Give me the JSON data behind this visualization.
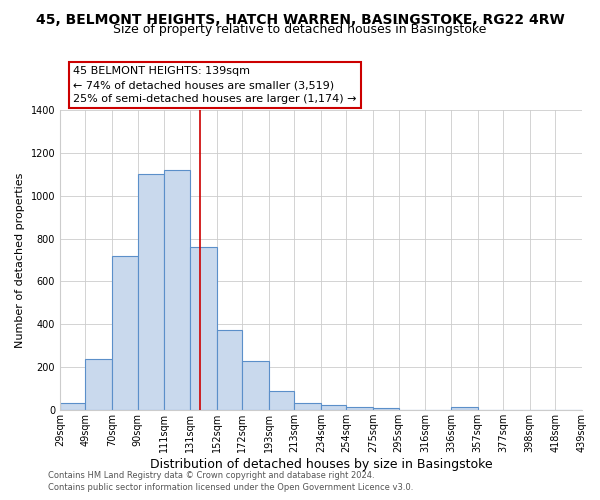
{
  "title": "45, BELMONT HEIGHTS, HATCH WARREN, BASINGSTOKE, RG22 4RW",
  "subtitle": "Size of property relative to detached houses in Basingstoke",
  "xlabel": "Distribution of detached houses by size in Basingstoke",
  "ylabel": "Number of detached properties",
  "bar_edges": [
    29,
    49,
    70,
    90,
    111,
    131,
    152,
    172,
    193,
    213,
    234,
    254,
    275,
    295,
    316,
    336,
    357,
    377,
    398,
    418,
    439
  ],
  "bar_heights": [
    35,
    240,
    720,
    1100,
    1120,
    760,
    375,
    228,
    90,
    35,
    22,
    14,
    10,
    0,
    0,
    12,
    0,
    0,
    0,
    0
  ],
  "bar_color": "#c9d9ed",
  "bar_edge_color": "#5b8fc9",
  "bar_linewidth": 0.8,
  "vline_x": 139,
  "vline_color": "#cc0000",
  "vline_linewidth": 1.2,
  "annotation_text": "45 BELMONT HEIGHTS: 139sqm\n← 74% of detached houses are smaller (3,519)\n25% of semi-detached houses are larger (1,174) →",
  "annotation_box_edgecolor": "#cc0000",
  "annotation_box_facecolor": "#ffffff",
  "ylim": [
    0,
    1400
  ],
  "xlim": [
    29,
    439
  ],
  "yticks": [
    0,
    200,
    400,
    600,
    800,
    1000,
    1200,
    1400
  ],
  "xtick_labels": [
    "29sqm",
    "49sqm",
    "70sqm",
    "90sqm",
    "111sqm",
    "131sqm",
    "152sqm",
    "172sqm",
    "193sqm",
    "213sqm",
    "234sqm",
    "254sqm",
    "275sqm",
    "295sqm",
    "316sqm",
    "336sqm",
    "357sqm",
    "377sqm",
    "398sqm",
    "418sqm",
    "439sqm"
  ],
  "xtick_positions": [
    29,
    49,
    70,
    90,
    111,
    131,
    152,
    172,
    193,
    213,
    234,
    254,
    275,
    295,
    316,
    336,
    357,
    377,
    398,
    418,
    439
  ],
  "grid_color": "#cccccc",
  "bg_color": "#ffffff",
  "footer_line1": "Contains HM Land Registry data © Crown copyright and database right 2024.",
  "footer_line2": "Contains public sector information licensed under the Open Government Licence v3.0.",
  "title_fontsize": 10,
  "subtitle_fontsize": 9,
  "xlabel_fontsize": 9,
  "ylabel_fontsize": 8,
  "tick_fontsize": 7,
  "footer_fontsize": 6,
  "annotation_fontsize": 8
}
